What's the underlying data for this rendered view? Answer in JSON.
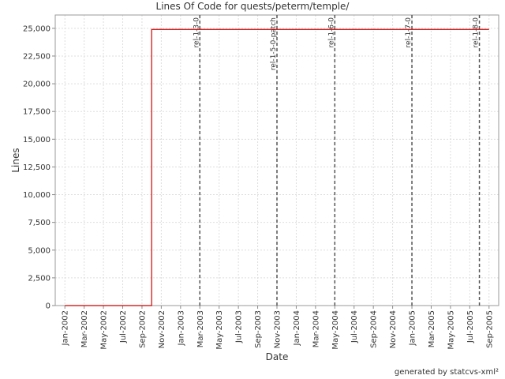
{
  "chart_data": {
    "type": "line",
    "title": "Lines Of Code for quests/peterm/temple/",
    "x_label": "Date",
    "y_label": "Lines",
    "footer": "generated by statcvs-xml²",
    "x": [
      "2002-01",
      "2002-10",
      "2002-10",
      "2005-09"
    ],
    "series": [
      {
        "color": "#cc0000",
        "values": [
          0,
          0,
          24900,
          24900
        ]
      }
    ],
    "xlim": [
      "2001-12",
      "2005-10"
    ],
    "xticks": [
      {
        "value": "2002-01",
        "label": "Jan-2002"
      },
      {
        "value": "2002-03",
        "label": "Mar-2002"
      },
      {
        "value": "2002-05",
        "label": "May-2002"
      },
      {
        "value": "2002-07",
        "label": "Jul-2002"
      },
      {
        "value": "2002-09",
        "label": "Sep-2002"
      },
      {
        "value": "2002-11",
        "label": "Nov-2002"
      },
      {
        "value": "2003-01",
        "label": "Jan-2003"
      },
      {
        "value": "2003-03",
        "label": "Mar-2003"
      },
      {
        "value": "2003-05",
        "label": "May-2003"
      },
      {
        "value": "2003-07",
        "label": "Jul-2003"
      },
      {
        "value": "2003-09",
        "label": "Sep-2003"
      },
      {
        "value": "2003-11",
        "label": "Nov-2003"
      },
      {
        "value": "2004-01",
        "label": "Jan-2004"
      },
      {
        "value": "2004-03",
        "label": "Mar-2004"
      },
      {
        "value": "2004-05",
        "label": "May-2004"
      },
      {
        "value": "2004-07",
        "label": "Jul-2004"
      },
      {
        "value": "2004-09",
        "label": "Sep-2004"
      },
      {
        "value": "2004-11",
        "label": "Nov-2004"
      },
      {
        "value": "2005-01",
        "label": "Jan-2005"
      },
      {
        "value": "2005-03",
        "label": "Mar-2005"
      },
      {
        "value": "2005-05",
        "label": "May-2005"
      },
      {
        "value": "2005-07",
        "label": "Jul-2005"
      },
      {
        "value": "2005-09",
        "label": "Sep-2005"
      }
    ],
    "ylim": [
      0,
      26200
    ],
    "yticks": [
      0,
      {
        "value": 2500,
        "label": "2,500"
      },
      {
        "value": 5000,
        "label": "5,000"
      },
      {
        "value": 7500,
        "label": "7,500"
      },
      {
        "value": 10000,
        "label": "10,000"
      },
      {
        "value": 12500,
        "label": "12,500"
      },
      {
        "value": 15000,
        "label": "15,000"
      },
      {
        "value": 17500,
        "label": "17,500"
      },
      {
        "value": 20000,
        "label": "20,000"
      },
      {
        "value": 22500,
        "label": "22,500"
      },
      {
        "value": 25000,
        "label": "25,000"
      }
    ],
    "grid": true,
    "markers": [
      {
        "label": "rel-1-3-0",
        "x": "2003-03"
      },
      {
        "label": "rel-1-5-0-patch",
        "x": "2003-11"
      },
      {
        "label": "rel-1-6-0",
        "x": "2004-05"
      },
      {
        "label": "rel-1-7-0",
        "x": "2005-01"
      },
      {
        "label": "rel-1-8-0",
        "x": "2005-08"
      }
    ]
  }
}
